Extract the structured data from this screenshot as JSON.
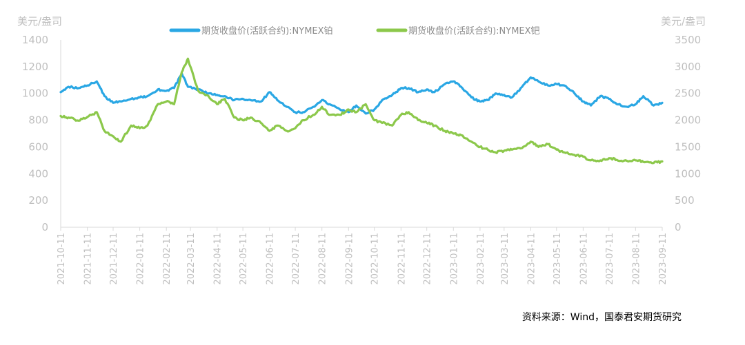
{
  "chart_data": {
    "type": "line",
    "left_axis_unit": "美元/盎司",
    "right_axis_unit": "美元/盎司",
    "left_ylim": [
      0,
      1400
    ],
    "left_yticks": [
      0,
      200,
      400,
      600,
      800,
      1000,
      1200,
      1400
    ],
    "right_ylim": [
      0,
      3500
    ],
    "right_yticks": [
      0,
      500,
      1000,
      1500,
      2000,
      2500,
      3000,
      3500
    ],
    "x_range": [
      "2021-10-11",
      "2023-09-11"
    ],
    "categories": [
      "2021-10-11",
      "2021-11-11",
      "2021-12-11",
      "2022-01-11",
      "2022-02-11",
      "2022-03-11",
      "2022-04-11",
      "2022-05-11",
      "2022-06-11",
      "2022-07-11",
      "2022-08-11",
      "2022-09-11",
      "2022-10-11",
      "2022-11-11",
      "2022-12-11",
      "2023-01-11",
      "2023-02-11",
      "2023-03-11",
      "2023-04-11",
      "2023-05-11",
      "2023-06-11",
      "2023-07-11",
      "2023-08-11",
      "2023-09-11"
    ],
    "grid": false,
    "legend_position": "top",
    "series": [
      {
        "name": "期货收盘价(活跃合约):NYMEX铂",
        "axis": "left",
        "color": "#2aa7e4",
        "x": [
          "2021-10-11",
          "2021-10-20",
          "2021-11-01",
          "2021-11-11",
          "2021-11-22",
          "2021-12-01",
          "2021-12-11",
          "2021-12-20",
          "2022-01-01",
          "2022-01-11",
          "2022-01-20",
          "2022-02-01",
          "2022-02-11",
          "2022-02-20",
          "2022-03-01",
          "2022-03-08",
          "2022-03-20",
          "2022-04-01",
          "2022-04-11",
          "2022-04-20",
          "2022-05-01",
          "2022-05-11",
          "2022-05-20",
          "2022-06-01",
          "2022-06-11",
          "2022-06-20",
          "2022-07-01",
          "2022-07-11",
          "2022-07-20",
          "2022-08-01",
          "2022-08-11",
          "2022-08-20",
          "2022-09-01",
          "2022-09-11",
          "2022-09-20",
          "2022-10-01",
          "2022-10-11",
          "2022-10-20",
          "2022-11-01",
          "2022-11-11",
          "2022-11-20",
          "2022-12-01",
          "2022-12-11",
          "2022-12-20",
          "2023-01-01",
          "2023-01-11",
          "2023-01-20",
          "2023-02-01",
          "2023-02-11",
          "2023-02-20",
          "2023-03-01",
          "2023-03-11",
          "2023-03-20",
          "2023-04-01",
          "2023-04-11",
          "2023-04-20",
          "2023-05-01",
          "2023-05-11",
          "2023-05-20",
          "2023-06-01",
          "2023-06-11",
          "2023-06-20",
          "2023-07-01",
          "2023-07-11",
          "2023-07-20",
          "2023-08-01",
          "2023-08-11",
          "2023-08-20",
          "2023-09-01",
          "2023-09-11"
        ],
        "values": [
          1010,
          1050,
          1040,
          1060,
          1090,
          980,
          930,
          940,
          960,
          970,
          980,
          1030,
          1020,
          1040,
          1150,
          1050,
          1030,
          1000,
          990,
          980,
          950,
          960,
          950,
          940,
          1010,
          950,
          900,
          860,
          860,
          900,
          950,
          920,
          880,
          860,
          910,
          850,
          880,
          950,
          990,
          1040,
          1040,
          1010,
          1030,
          1010,
          1070,
          1090,
          1050,
          970,
          940,
          950,
          1000,
          990,
          970,
          1050,
          1120,
          1090,
          1060,
          1070,
          1060,
          1000,
          940,
          910,
          980,
          960,
          920,
          900,
          920,
          980,
          910,
          930
        ]
      },
      {
        "name": "期货收盘价(活跃合约):NYMEX钯",
        "axis": "right",
        "color": "#8cc84b",
        "x": [
          "2021-10-11",
          "2021-10-20",
          "2021-11-01",
          "2021-11-11",
          "2021-11-22",
          "2021-12-01",
          "2021-12-11",
          "2021-12-20",
          "2022-01-01",
          "2022-01-11",
          "2022-01-20",
          "2022-02-01",
          "2022-02-11",
          "2022-02-20",
          "2022-03-01",
          "2022-03-08",
          "2022-03-20",
          "2022-04-01",
          "2022-04-11",
          "2022-04-20",
          "2022-05-01",
          "2022-05-11",
          "2022-05-20",
          "2022-06-01",
          "2022-06-11",
          "2022-06-20",
          "2022-07-01",
          "2022-07-11",
          "2022-07-20",
          "2022-08-01",
          "2022-08-11",
          "2022-08-20",
          "2022-09-01",
          "2022-09-11",
          "2022-09-20",
          "2022-10-01",
          "2022-10-11",
          "2022-10-20",
          "2022-11-01",
          "2022-11-11",
          "2022-11-20",
          "2022-12-01",
          "2022-12-11",
          "2022-12-20",
          "2023-01-01",
          "2023-01-11",
          "2023-01-20",
          "2023-02-01",
          "2023-02-11",
          "2023-02-20",
          "2023-03-01",
          "2023-03-11",
          "2023-03-20",
          "2023-04-01",
          "2023-04-11",
          "2023-04-20",
          "2023-05-01",
          "2023-05-11",
          "2023-05-20",
          "2023-06-01",
          "2023-06-11",
          "2023-06-20",
          "2023-07-01",
          "2023-07-11",
          "2023-07-20",
          "2023-08-01",
          "2023-08-11",
          "2023-08-20",
          "2023-09-01",
          "2023-09-11"
        ],
        "values": [
          2080,
          2050,
          1990,
          2060,
          2150,
          1800,
          1700,
          1600,
          1900,
          1850,
          1900,
          2300,
          2350,
          2300,
          2900,
          3150,
          2550,
          2450,
          2300,
          2400,
          2050,
          2000,
          2050,
          1950,
          1800,
          1900,
          1800,
          1850,
          2000,
          2100,
          2250,
          2100,
          2100,
          2200,
          2150,
          2300,
          2000,
          1950,
          1900,
          2100,
          2150,
          2000,
          1950,
          1900,
          1800,
          1750,
          1720,
          1600,
          1500,
          1450,
          1400,
          1430,
          1450,
          1480,
          1600,
          1500,
          1550,
          1450,
          1400,
          1350,
          1320,
          1250,
          1250,
          1290,
          1260,
          1240,
          1250,
          1220,
          1200,
          1230
        ]
      }
    ],
    "source": "资料来源：Wind，国泰君安期货研究"
  }
}
